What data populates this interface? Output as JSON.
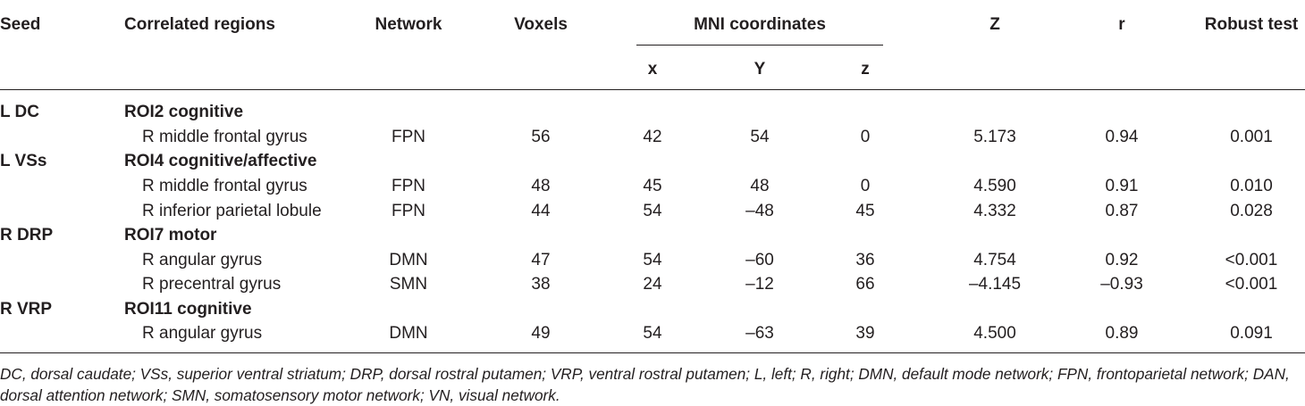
{
  "table": {
    "headers": {
      "seed": "Seed",
      "correlated_regions": "Correlated regions",
      "network": "Network",
      "voxels": "Voxels",
      "mni": "MNI coordinates",
      "x": "x",
      "y": "Y",
      "z": "z",
      "Z": "Z",
      "r": "r",
      "robust": "Robust test"
    },
    "groups": [
      {
        "seed": "L DC",
        "roi": "ROI2 cognitive",
        "rows": [
          {
            "region": "R middle frontal gyrus",
            "network": "FPN",
            "voxels": "56",
            "x": "42",
            "y": "54",
            "z": "0",
            "Z": "5.173",
            "r": "0.94",
            "robust": "0.001"
          }
        ]
      },
      {
        "seed": "L VSs",
        "roi": "ROI4 cognitive/affective",
        "rows": [
          {
            "region": "R middle frontal gyrus",
            "network": "FPN",
            "voxels": "48",
            "x": "45",
            "y": "48",
            "z": "0",
            "Z": "4.590",
            "r": "0.91",
            "robust": "0.010"
          },
          {
            "region": "R inferior parietal lobule",
            "network": "FPN",
            "voxels": "44",
            "x": "54",
            "y": "–48",
            "z": "45",
            "Z": "4.332",
            "r": "0.87",
            "robust": "0.028"
          }
        ]
      },
      {
        "seed": "R DRP",
        "roi": "ROI7 motor",
        "rows": [
          {
            "region": "R angular gyrus",
            "network": "DMN",
            "voxels": "47",
            "x": "54",
            "y": "–60",
            "z": "36",
            "Z": "4.754",
            "r": "0.92",
            "robust": "<0.001"
          },
          {
            "region": "R precentral gyrus",
            "network": "SMN",
            "voxels": "38",
            "x": "24",
            "y": "–12",
            "z": "66",
            "Z": "–4.145",
            "r": "–0.93",
            "robust": "<0.001"
          }
        ]
      },
      {
        "seed": "R VRP",
        "roi": "ROI11 cognitive",
        "rows": [
          {
            "region": "R angular gyrus",
            "network": "DMN",
            "voxels": "49",
            "x": "54",
            "y": "–63",
            "z": "39",
            "Z": "4.500",
            "r": "0.89",
            "robust": "0.091"
          }
        ]
      }
    ],
    "footnote": "DC, dorsal caudate; VSs, superior ventral striatum; DRP, dorsal rostral putamen; VRP, ventral rostral putamen; L, left; R, right; DMN, default mode network; FPN, frontoparietal network; DAN, dorsal attention network; SMN, somatosensory motor network; VN, visual network."
  }
}
